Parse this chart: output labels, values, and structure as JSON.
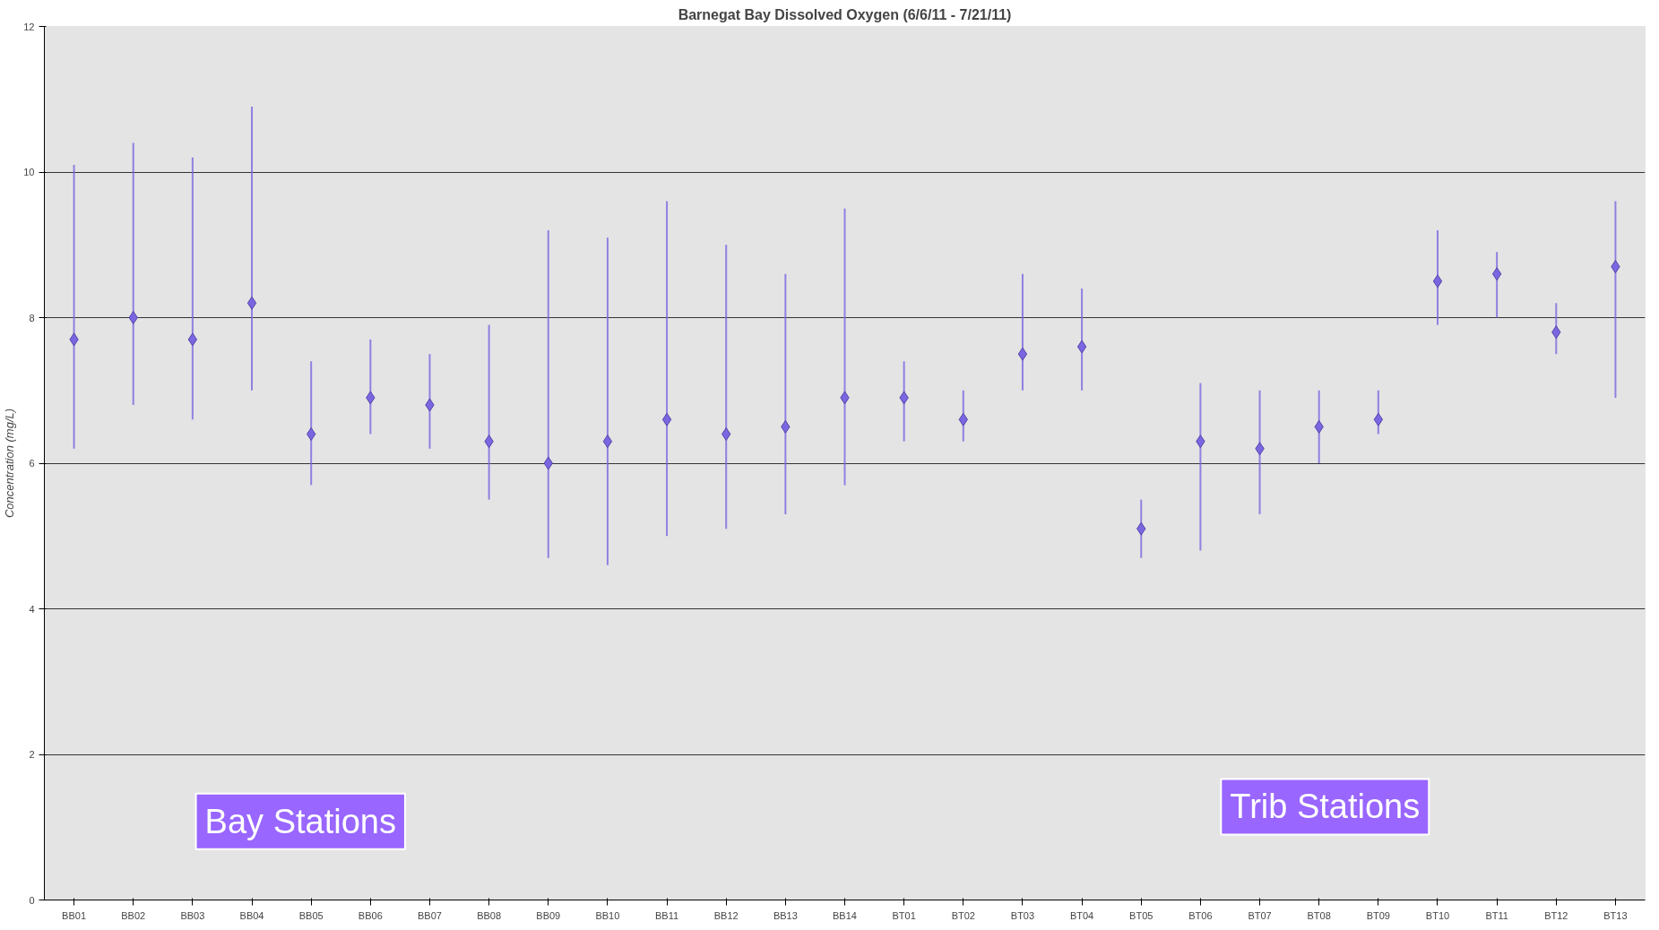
{
  "chart_data": {
    "type": "scatter",
    "title": "Barnegat Bay Dissolved Oxygen (6/6/11 - 7/21/11)",
    "ylabel": "Concentration (mg/L)",
    "categories": [
      "BB01",
      "BB02",
      "BB03",
      "BB04",
      "BB05",
      "BB06",
      "BB07",
      "BB08",
      "BB09",
      "BB10",
      "BB11",
      "BB12",
      "BB13",
      "BB14",
      "BT01",
      "BT02",
      "BT03",
      "BT04",
      "BT05",
      "BT06",
      "BT07",
      "BT08",
      "BT09",
      "BT10",
      "BT11",
      "BT12",
      "BT13"
    ],
    "series": [
      {
        "color": "#7a66e0",
        "values": [
          7.7,
          8.0,
          7.7,
          8.2,
          6.4,
          6.9,
          6.8,
          6.3,
          6.0,
          6.3,
          6.6,
          6.4,
          6.5,
          6.9,
          6.9,
          6.6,
          7.5,
          7.6,
          5.1,
          6.3,
          6.2,
          6.5,
          6.6,
          8.5,
          8.6,
          7.8,
          8.7
        ],
        "errors": [
          [
            6.2,
            10.1
          ],
          [
            6.8,
            10.4
          ],
          [
            6.6,
            10.2
          ],
          [
            7.0,
            10.9
          ],
          [
            5.7,
            7.4
          ],
          [
            6.4,
            7.7
          ],
          [
            6.2,
            7.5
          ],
          [
            5.5,
            7.9
          ],
          [
            4.7,
            9.2
          ],
          [
            4.6,
            9.1
          ],
          [
            5.0,
            9.6
          ],
          [
            5.1,
            9.0
          ],
          [
            5.3,
            8.6
          ],
          [
            5.7,
            9.5
          ],
          [
            6.3,
            7.4
          ],
          [
            6.3,
            7.0
          ],
          [
            7.0,
            8.6
          ],
          [
            7.0,
            8.4
          ],
          [
            4.7,
            5.5
          ],
          [
            4.8,
            7.1
          ],
          [
            5.3,
            7.0
          ],
          [
            6.0,
            7.0
          ],
          [
            6.4,
            7.0
          ],
          [
            7.9,
            9.2
          ],
          [
            8.0,
            8.9
          ],
          [
            7.5,
            8.2
          ],
          [
            6.9,
            9.6
          ]
        ]
      }
    ],
    "ylim": [
      0,
      12
    ],
    "yticks": [
      0,
      2,
      4,
      6,
      8,
      10,
      12
    ],
    "grid": "y",
    "marker": "diamond",
    "annotations": [
      "Bay Stations",
      "Trib Stations"
    ]
  }
}
